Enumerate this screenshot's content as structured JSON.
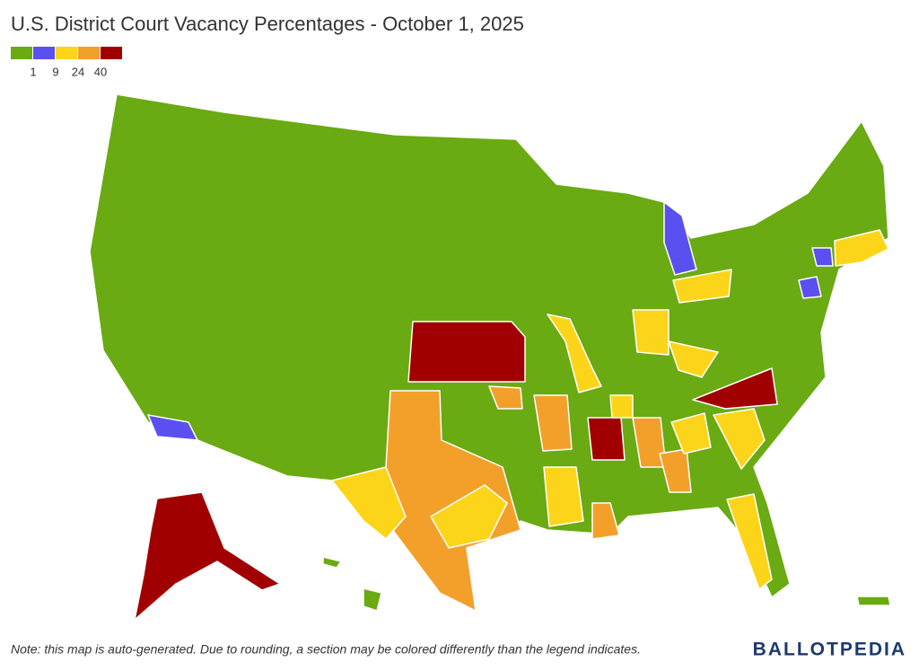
{
  "title": "U.S. District Court Vacancy Percentages - October 1, 2025",
  "legend": {
    "colors": [
      "#6aaa12",
      "#5a50f0",
      "#fcd51a",
      "#f3a02b",
      "#a10000"
    ],
    "ticks": [
      1,
      9,
      24,
      40
    ]
  },
  "note": "Note: this map is auto-generated. Due to rounding, a section may be colored differently than the legend indicates.",
  "brand": "BALLOTPEDIA"
}
